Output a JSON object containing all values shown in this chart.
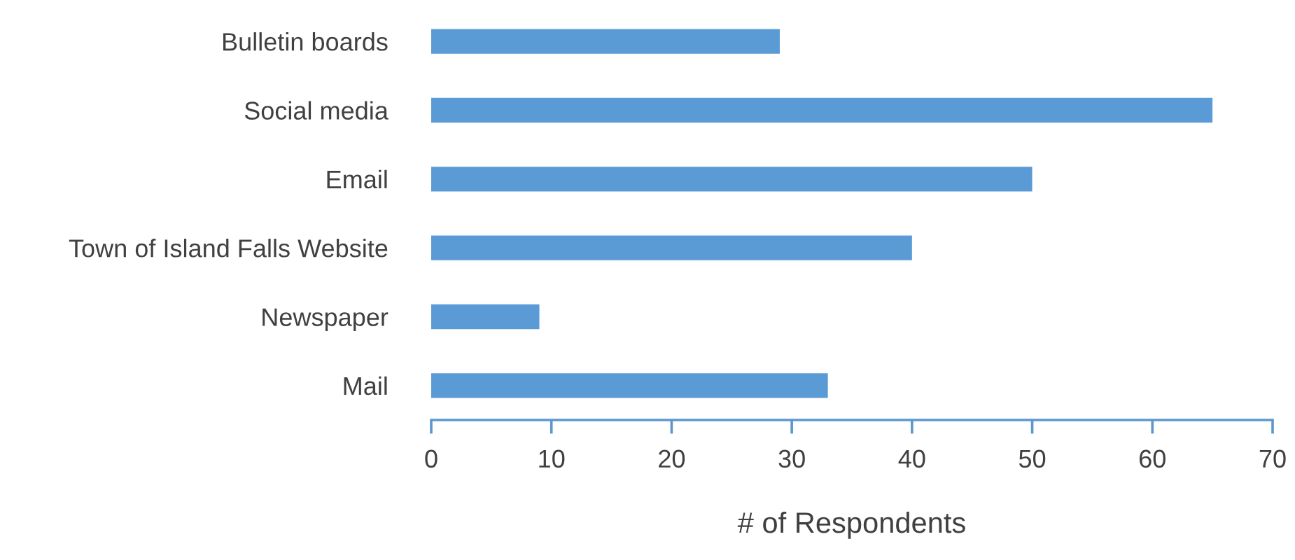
{
  "chart_data": {
    "type": "bar",
    "orientation": "horizontal",
    "xlabel": "# of Respondents",
    "categories": [
      "Bulletin boards",
      "Social media",
      "Email",
      "Town of Island Falls Website",
      "Newspaper",
      "Mail"
    ],
    "values": [
      29,
      65,
      50,
      40,
      9,
      33
    ],
    "color": "#5b9bd5",
    "xlim": [
      0,
      70
    ],
    "xticks": [
      0,
      10,
      20,
      30,
      40,
      50,
      60,
      70
    ],
    "grid": false
  }
}
